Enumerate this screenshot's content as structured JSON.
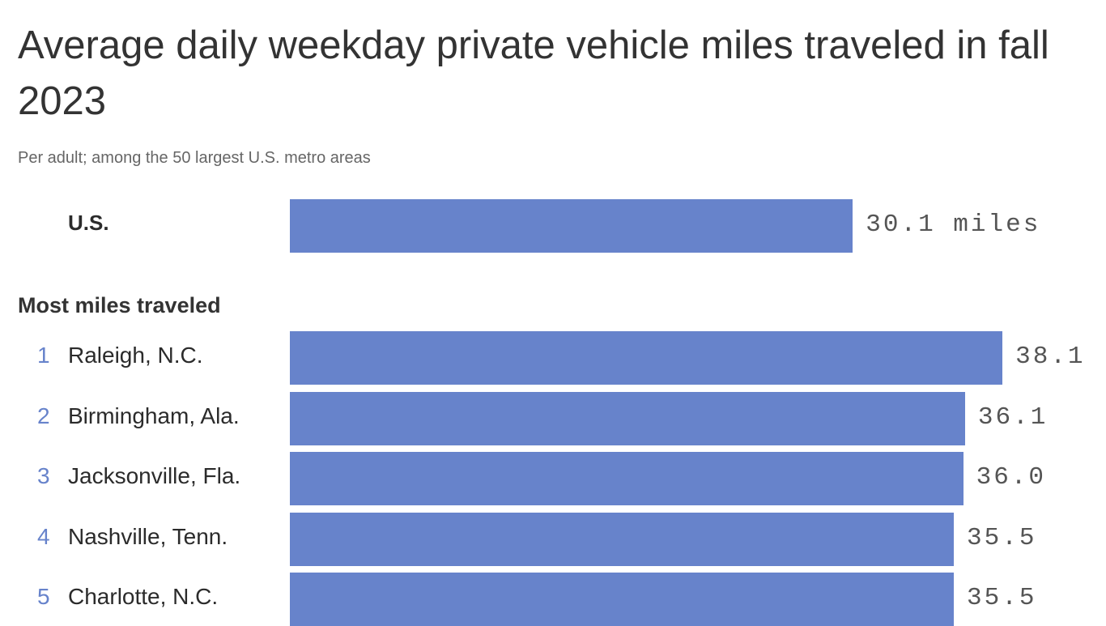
{
  "chart_data": {
    "type": "bar",
    "orientation": "horizontal",
    "title": "Average daily weekday private vehicle miles traveled in fall 2023",
    "subtitle": "Per adult; among the 50 largest U.S. metro areas",
    "bar_color": "#6783cb",
    "rank_color": "#6783cb",
    "reference": {
      "label": "U.S.",
      "value": 30.1,
      "value_label": "30.1 miles"
    },
    "section_label": "Most miles traveled",
    "items": [
      {
        "rank": "1",
        "label": "Raleigh, N.C.",
        "value": 38.1,
        "value_label": "38.1"
      },
      {
        "rank": "2",
        "label": "Birmingham, Ala.",
        "value": 36.1,
        "value_label": "36.1"
      },
      {
        "rank": "3",
        "label": "Jacksonville, Fla.",
        "value": 36.0,
        "value_label": "36.0"
      },
      {
        "rank": "4",
        "label": "Nashville, Tenn.",
        "value": 35.5,
        "value_label": "35.5"
      },
      {
        "rank": "5",
        "label": "Charlotte, N.C.",
        "value": 35.5,
        "value_label": "35.5"
      }
    ]
  }
}
